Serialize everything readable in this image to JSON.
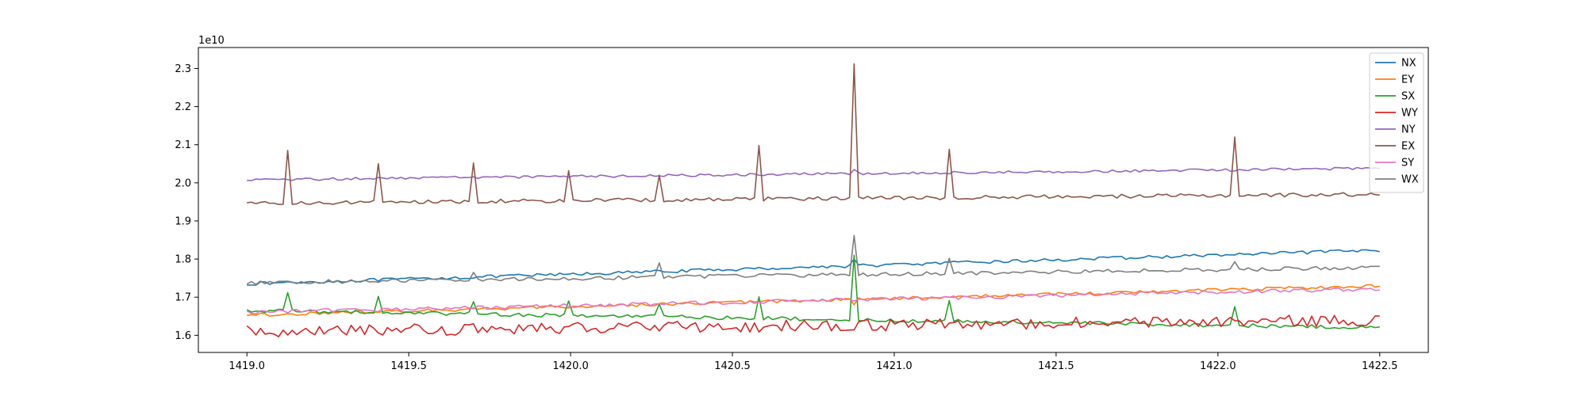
{
  "chart_data": {
    "type": "line",
    "title": "",
    "xlabel": "",
    "ylabel": "",
    "offset_text": "1e10",
    "xlim": [
      1418.85,
      1422.65
    ],
    "ylim": [
      1.555,
      2.355
    ],
    "x_range": [
      1419.0,
      1422.5
    ],
    "n_points": 251,
    "x_ticks": [
      1419.0,
      1419.5,
      1420.0,
      1420.5,
      1421.0,
      1421.5,
      1422.0,
      1422.5
    ],
    "x_tick_labels": [
      "1419.0",
      "1419.5",
      "1420.0",
      "1420.5",
      "1421.0",
      "1421.5",
      "1422.0",
      "1422.5"
    ],
    "y_ticks": [
      1.6,
      1.7,
      1.8,
      1.9,
      2.0,
      2.1,
      2.2,
      2.3
    ],
    "y_tick_labels": [
      "1.6",
      "1.7",
      "1.8",
      "1.9",
      "2.0",
      "2.1",
      "2.2",
      "2.3"
    ],
    "legend_position": "top-right",
    "grid": false,
    "series": [
      {
        "name": "NX",
        "color": "#1f77b4",
        "start": 1.735,
        "end": 1.823,
        "noise": 0.0025,
        "spikes": [
          [
            1420.28,
            1.77
          ],
          [
            1420.87,
            1.8
          ]
        ]
      },
      {
        "name": "EY",
        "color": "#ff7f0e",
        "start": 1.653,
        "end": 1.73,
        "noise": 0.0025,
        "spikes": [
          [
            1420.87,
            1.68
          ]
        ]
      },
      {
        "name": "SX",
        "color": "#2ca02c",
        "start": 1.665,
        "end": 1.62,
        "noise": 0.003,
        "spikes": [
          [
            1419.12,
            1.712
          ],
          [
            1419.4,
            1.702
          ],
          [
            1419.7,
            1.688
          ],
          [
            1420.0,
            1.69
          ],
          [
            1420.28,
            1.682
          ],
          [
            1420.58,
            1.701
          ],
          [
            1420.87,
            1.81
          ],
          [
            1421.17,
            1.691
          ],
          [
            1422.05,
            1.675
          ]
        ]
      },
      {
        "name": "WY",
        "color": "#d62728",
        "start": 1.61,
        "end": 1.64,
        "noise": 0.009,
        "spikes": []
      },
      {
        "name": "NY",
        "color": "#9467bd",
        "start": 2.008,
        "end": 2.038,
        "noise": 0.002,
        "spikes": [
          [
            1420.87,
            2.035
          ]
        ]
      },
      {
        "name": "EX",
        "color": "#8c564b",
        "start": 1.947,
        "end": 1.97,
        "noise": 0.003,
        "spikes": [
          [
            1419.12,
            2.085
          ],
          [
            1419.4,
            2.05
          ],
          [
            1419.7,
            2.052
          ],
          [
            1420.0,
            2.032
          ],
          [
            1420.28,
            2.02
          ],
          [
            1420.58,
            2.098
          ],
          [
            1420.87,
            2.312
          ],
          [
            1421.17,
            2.088
          ],
          [
            1422.05,
            2.12
          ]
        ]
      },
      {
        "name": "SY",
        "color": "#e377c2",
        "start": 1.66,
        "end": 1.722,
        "noise": 0.003,
        "spikes": []
      },
      {
        "name": "WX",
        "color": "#7f7f7f",
        "start": 1.738,
        "end": 1.778,
        "noise": 0.003,
        "spikes": [
          [
            1419.7,
            1.765
          ],
          [
            1420.28,
            1.79
          ],
          [
            1420.87,
            1.862
          ],
          [
            1421.17,
            1.802
          ],
          [
            1422.05,
            1.793
          ]
        ]
      }
    ]
  }
}
